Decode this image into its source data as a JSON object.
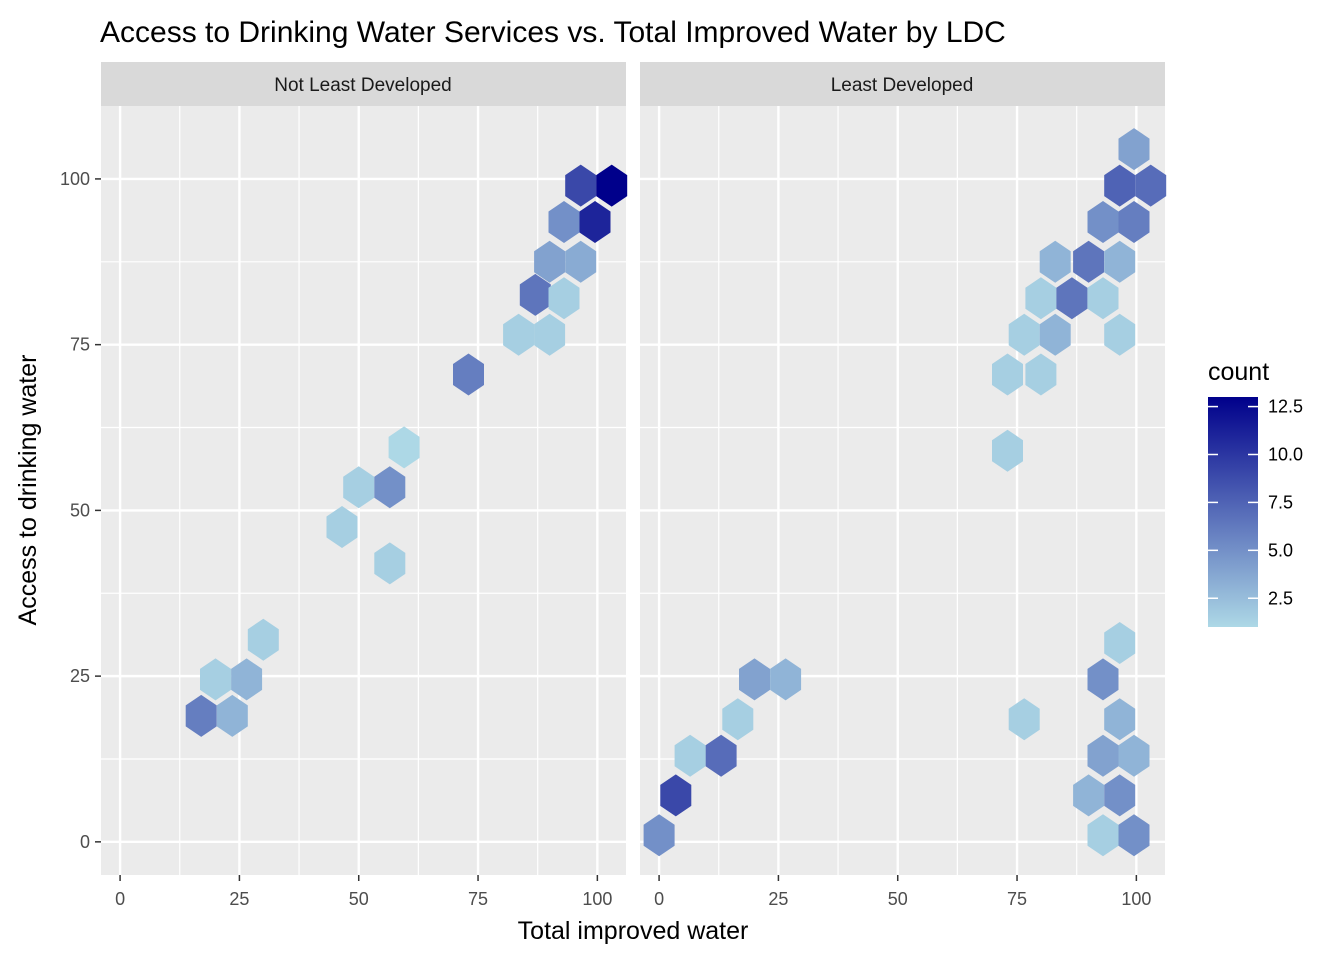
{
  "chart_data": {
    "type": "heatmap",
    "subtype": "hexbin",
    "title": "Access to Drinking Water Services vs. Total Improved Water by LDC",
    "xlabel": "Total improved water",
    "ylabel": "Access to drinking water",
    "xlim": [
      -4,
      106
    ],
    "ylim": [
      -5,
      111
    ],
    "x_ticks": [
      0,
      25,
      50,
      75,
      100
    ],
    "y_ticks": [
      0,
      25,
      50,
      75,
      100
    ],
    "grid": true,
    "facet_by": "LDC",
    "colorbar": {
      "title": "count",
      "min": 1,
      "max": 13,
      "ticks": [
        2.5,
        5.0,
        7.5,
        10.0,
        12.5
      ],
      "tick_labels": [
        "2.5",
        "5.0",
        "7.5",
        "10.0",
        "12.5"
      ],
      "low_color": "#add8e6",
      "high_color": "#00008b"
    },
    "panels": [
      {
        "name": "Not Least Developed",
        "cells": [
          {
            "x": 96.5,
            "y": 99,
            "count": 9
          },
          {
            "x": 103,
            "y": 99,
            "count": 13
          },
          {
            "x": 93,
            "y": 93.5,
            "count": 5
          },
          {
            "x": 99.5,
            "y": 93.5,
            "count": 11
          },
          {
            "x": 90,
            "y": 87.5,
            "count": 4
          },
          {
            "x": 96.5,
            "y": 87.5,
            "count": 3.5
          },
          {
            "x": 87,
            "y": 82.5,
            "count": 6.5
          },
          {
            "x": 93,
            "y": 82,
            "count": 1.5
          },
          {
            "x": 83.5,
            "y": 76.5,
            "count": 1.5
          },
          {
            "x": 90,
            "y": 76.5,
            "count": 1.5
          },
          {
            "x": 73,
            "y": 70.5,
            "count": 6
          },
          {
            "x": 59.5,
            "y": 59.5,
            "count": 1
          },
          {
            "x": 50,
            "y": 53.5,
            "count": 1.5
          },
          {
            "x": 56.5,
            "y": 53.5,
            "count": 5
          },
          {
            "x": 46.5,
            "y": 47.5,
            "count": 1.5
          },
          {
            "x": 56.5,
            "y": 42,
            "count": 1.5
          },
          {
            "x": 30,
            "y": 30.5,
            "count": 1.5
          },
          {
            "x": 20,
            "y": 24.5,
            "count": 1.5
          },
          {
            "x": 26.5,
            "y": 24.5,
            "count": 3
          },
          {
            "x": 17,
            "y": 19,
            "count": 6
          },
          {
            "x": 23.5,
            "y": 19,
            "count": 3
          }
        ]
      },
      {
        "name": "Least Developed",
        "cells": [
          {
            "x": 99.5,
            "y": 104.5,
            "count": 4
          },
          {
            "x": 96.5,
            "y": 99,
            "count": 7.5
          },
          {
            "x": 103,
            "y": 99,
            "count": 7
          },
          {
            "x": 93,
            "y": 93.5,
            "count": 5
          },
          {
            "x": 99.5,
            "y": 93.5,
            "count": 6
          },
          {
            "x": 83,
            "y": 87.5,
            "count": 3
          },
          {
            "x": 90,
            "y": 87.5,
            "count": 6.5
          },
          {
            "x": 96.5,
            "y": 87.5,
            "count": 3
          },
          {
            "x": 80,
            "y": 82,
            "count": 1.5
          },
          {
            "x": 86.5,
            "y": 82,
            "count": 6.5
          },
          {
            "x": 93,
            "y": 82,
            "count": 1.5
          },
          {
            "x": 76.5,
            "y": 76.5,
            "count": 1.5
          },
          {
            "x": 83,
            "y": 76.5,
            "count": 3
          },
          {
            "x": 96.5,
            "y": 76.5,
            "count": 1.5
          },
          {
            "x": 73,
            "y": 70.5,
            "count": 1.5
          },
          {
            "x": 80,
            "y": 70.5,
            "count": 1.5
          },
          {
            "x": 73,
            "y": 59,
            "count": 1.5
          },
          {
            "x": 96.5,
            "y": 30,
            "count": 1.5
          },
          {
            "x": 93,
            "y": 24.5,
            "count": 5
          },
          {
            "x": 20,
            "y": 24.5,
            "count": 4
          },
          {
            "x": 26.5,
            "y": 24.5,
            "count": 3
          },
          {
            "x": 96.5,
            "y": 18.5,
            "count": 3
          },
          {
            "x": 76.5,
            "y": 18.5,
            "count": 1.5
          },
          {
            "x": 16.5,
            "y": 18.5,
            "count": 1.5
          },
          {
            "x": 93,
            "y": 13,
            "count": 4
          },
          {
            "x": 99.5,
            "y": 13,
            "count": 3
          },
          {
            "x": 13,
            "y": 13,
            "count": 7
          },
          {
            "x": 6.5,
            "y": 13,
            "count": 1.5
          },
          {
            "x": 90,
            "y": 7,
            "count": 3
          },
          {
            "x": 96.5,
            "y": 7,
            "count": 5
          },
          {
            "x": 3.5,
            "y": 7,
            "count": 9
          },
          {
            "x": 93,
            "y": 1,
            "count": 1.5
          },
          {
            "x": 99.5,
            "y": 1,
            "count": 5
          },
          {
            "x": 0,
            "y": 1,
            "count": 5
          }
        ]
      }
    ]
  }
}
